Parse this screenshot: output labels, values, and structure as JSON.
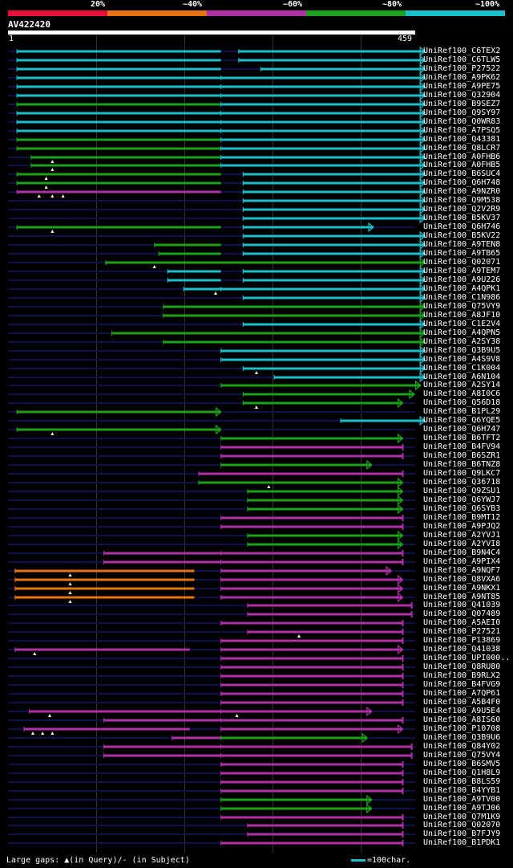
{
  "colors": {
    "red": "#e8103a",
    "orange": "#e87414",
    "purple": "#b030a8",
    "green": "#1aa21a",
    "cyan": "#1bbfcc",
    "query": "#ffffff",
    "track": "#10104a",
    "gap": "#ffffcc"
  },
  "legend": {
    "labels": [
      "20%",
      "~40%",
      "~60%",
      "~80%",
      "~100%"
    ],
    "bands": [
      "red",
      "orange",
      "purple",
      "green",
      "cyan"
    ]
  },
  "query": {
    "id": "AV422420",
    "start": "1",
    "end": "459",
    "length": 459
  },
  "hits": [
    {
      "label": "UniRef100_C6TEX2",
      "color": "cyan",
      "segs": [
        [
          10,
          240
        ],
        [
          260,
          470
        ]
      ],
      "end": "arrow"
    },
    {
      "label": "UniRef100_C6TLW5",
      "color": "cyan",
      "segs": [
        [
          10,
          240
        ],
        [
          260,
          470
        ]
      ],
      "end": "arrow"
    },
    {
      "label": "UniRef100_P27522",
      "color": "cyan",
      "segs": [
        [
          10,
          240
        ],
        [
          285,
          470
        ]
      ],
      "end": "arrow"
    },
    {
      "label": "UniRef100_A9PK62",
      "color": "cyan",
      "segs": [
        [
          10,
          240
        ],
        [
          240,
          470
        ]
      ],
      "end": "arrow"
    },
    {
      "label": "UniRef100_A9PE75",
      "color": "cyan",
      "segs": [
        [
          10,
          240
        ],
        [
          240,
          470
        ]
      ],
      "end": "arrow"
    },
    {
      "label": "UniRef100_Q32904",
      "color": "cyan",
      "segs": [
        [
          10,
          240
        ],
        [
          240,
          470
        ]
      ],
      "end": "arrow"
    },
    {
      "label": "UniRef100_B9SEZ7",
      "color": "green",
      "segs": [
        [
          10,
          240
        ]
      ],
      "segs2": [
        [
          240,
          470
        ]
      ],
      "color2": "cyan",
      "end": "arrow"
    },
    {
      "label": "UniRef100_Q9SY97",
      "color": "cyan",
      "segs": [
        [
          10,
          240
        ],
        [
          240,
          470
        ]
      ],
      "end": "arrow"
    },
    {
      "label": "UniRef100_Q0WR83",
      "color": "cyan",
      "segs": [
        [
          10,
          240
        ],
        [
          240,
          470
        ]
      ],
      "end": "arrow"
    },
    {
      "label": "UniRef100_A7PSQ5",
      "color": "cyan",
      "segs": [
        [
          10,
          240
        ],
        [
          240,
          470
        ]
      ],
      "end": "arrow"
    },
    {
      "label": "UniRef100_Q43381",
      "color": "green",
      "segs": [
        [
          10,
          240
        ]
      ],
      "segs2": [
        [
          240,
          470
        ]
      ],
      "color2": "cyan",
      "end": "arrow"
    },
    {
      "label": "UniRef100_Q8LCR7",
      "color": "green",
      "segs": [
        [
          10,
          240
        ]
      ],
      "segs2": [
        [
          240,
          470
        ]
      ],
      "color2": "cyan",
      "end": "arrow"
    },
    {
      "label": "UniRef100_A0FHB6",
      "color": "green",
      "segs": [
        [
          26,
          240
        ]
      ],
      "segs2": [
        [
          240,
          470
        ]
      ],
      "color2": "cyan",
      "end": "arrow",
      "gaps": [
        50
      ]
    },
    {
      "label": "UniRef100_A0FHB5",
      "color": "green",
      "segs": [
        [
          26,
          240
        ]
      ],
      "segs2": [
        [
          240,
          470
        ]
      ],
      "color2": "cyan",
      "end": "arrow",
      "gaps": [
        50
      ]
    },
    {
      "label": "UniRef100_B6SUC4",
      "color": "green",
      "segs": [
        [
          10,
          240
        ]
      ],
      "segs2": [
        [
          265,
          470
        ]
      ],
      "color2": "cyan",
      "end": "arrow",
      "gaps": [
        43
      ]
    },
    {
      "label": "UniRef100_Q6H748",
      "color": "green",
      "segs": [
        [
          10,
          240
        ]
      ],
      "segs2": [
        [
          265,
          470
        ]
      ],
      "color2": "cyan",
      "end": "arrow",
      "gaps": [
        43
      ]
    },
    {
      "label": "UniRef100_A9NZR0",
      "color": "purple",
      "segs": [
        [
          10,
          240
        ]
      ],
      "segs2": [
        [
          265,
          470
        ]
      ],
      "color2": "cyan",
      "end": "arrow",
      "gaps": [
        35,
        50,
        62
      ]
    },
    {
      "label": "UniRef100_Q9M538",
      "color": "cyan",
      "segs": [
        [
          265,
          470
        ]
      ],
      "end": "arrow"
    },
    {
      "label": "UniRef100_Q2V2R9",
      "color": "cyan",
      "segs": [
        [
          265,
          470
        ]
      ],
      "end": "arrow"
    },
    {
      "label": "UniRef100_B5KV37",
      "color": "cyan",
      "segs": [
        [
          265,
          470
        ]
      ],
      "end": "arrow"
    },
    {
      "label": "UniRef100_Q6H746",
      "color": "green",
      "segs": [
        [
          10,
          240
        ]
      ],
      "segs2": [
        [
          265,
          412
        ]
      ],
      "color2": "cyan",
      "end": "arrow",
      "gaps": [
        50
      ]
    },
    {
      "label": "UniRef100_B5KV22",
      "color": "cyan",
      "segs": [
        [
          265,
          470
        ]
      ],
      "end": "arrow"
    },
    {
      "label": "UniRef100_A9TEN8",
      "color": "green",
      "segs": [
        [
          165,
          240
        ]
      ],
      "segs2": [
        [
          265,
          470
        ]
      ],
      "color2": "cyan",
      "end": "arrow"
    },
    {
      "label": "UniRef100_A9TB65",
      "color": "green",
      "segs": [
        [
          170,
          240
        ]
      ],
      "segs2": [
        [
          265,
          470
        ]
      ],
      "color2": "cyan",
      "end": "arrow"
    },
    {
      "label": "UniRef100_Q02071",
      "color": "green",
      "segs": [
        [
          110,
          470
        ]
      ],
      "end": "arrow",
      "gaps": [
        165
      ]
    },
    {
      "label": "UniRef100_A9TEM7",
      "color": "cyan",
      "segs": [
        [
          180,
          240
        ],
        [
          265,
          470
        ]
      ],
      "end": "arrow"
    },
    {
      "label": "UniRef100_A9U226",
      "color": "cyan",
      "segs": [
        [
          180,
          240
        ],
        [
          265,
          470
        ]
      ],
      "end": "arrow"
    },
    {
      "label": "UniRef100_A4QPK1",
      "color": "cyan",
      "segs": [
        [
          198,
          240
        ],
        [
          240,
          470
        ]
      ],
      "end": "arrow",
      "gaps": [
        234
      ]
    },
    {
      "label": "UniRef100_C1N986",
      "color": "cyan",
      "segs": [
        [
          265,
          470
        ]
      ],
      "end": "arrow"
    },
    {
      "label": "UniRef100_Q75VY9",
      "color": "green",
      "segs": [
        [
          175,
          470
        ]
      ],
      "end": "arrow"
    },
    {
      "label": "UniRef100_A8JF10",
      "color": "green",
      "segs": [
        [
          175,
          470
        ]
      ],
      "end": "arrow"
    },
    {
      "label": "UniRef100_C1E2V4",
      "color": "cyan",
      "segs": [
        [
          265,
          470
        ]
      ],
      "end": "arrow"
    },
    {
      "label": "UniRef100_A4QPN5",
      "color": "green",
      "segs": [
        [
          117,
          470
        ]
      ],
      "end": "arrow"
    },
    {
      "label": "UniRef100_A2SY38",
      "color": "green",
      "segs": [
        [
          175,
          470
        ]
      ],
      "end": "arrow"
    },
    {
      "label": "UniRef100_Q3B9U5",
      "color": "cyan",
      "segs": [
        [
          240,
          470
        ]
      ],
      "end": "arrow"
    },
    {
      "label": "UniRef100_A4S9V8",
      "color": "cyan",
      "segs": [
        [
          240,
          470
        ]
      ],
      "end": "arrow"
    },
    {
      "label": "UniRef100_C1K004",
      "color": "cyan",
      "segs": [
        [
          265,
          470
        ]
      ],
      "end": "arrow",
      "gaps": [
        280
      ]
    },
    {
      "label": "UniRef100_A6N104",
      "color": "cyan",
      "segs": [
        [
          300,
          470
        ]
      ],
      "end": "arrow"
    },
    {
      "label": "UniRef100_A2SY14",
      "color": "green",
      "segs": [
        [
          240,
          465
        ]
      ],
      "end": "arrow"
    },
    {
      "label": "UniRef100_A8I0C6",
      "color": "green",
      "segs": [
        [
          265,
          458
        ]
      ],
      "end": "arrow"
    },
    {
      "label": "UniRef100_Q56D18",
      "color": "green",
      "segs": [
        [
          265,
          445
        ]
      ],
      "end": "arrow",
      "gaps": [
        280
      ]
    },
    {
      "label": "UniRef100_B1PL29",
      "color": "green",
      "segs": [
        [
          10,
          240
        ]
      ],
      "end": "arrow"
    },
    {
      "label": "UniRef100_Q6YQE5",
      "color": "cyan",
      "segs": [
        [
          375,
          470
        ]
      ],
      "end": "arrow"
    },
    {
      "label": "UniRef100_Q6H747",
      "color": "green",
      "segs": [
        [
          10,
          240
        ]
      ],
      "end": "arrow",
      "gaps": [
        50
      ]
    },
    {
      "label": "UniRef100_B6TFT2",
      "color": "green",
      "segs": [
        [
          240,
          445
        ]
      ],
      "end": "arrow"
    },
    {
      "label": "UniRef100_B4FV94",
      "color": "purple",
      "segs": [
        [
          240,
          445
        ]
      ],
      "end": "bar"
    },
    {
      "label": "UniRef100_B6SZR1",
      "color": "purple",
      "segs": [
        [
          240,
          445
        ]
      ],
      "end": "bar"
    },
    {
      "label": "UniRef100_B6TNZ8",
      "color": "green",
      "segs": [
        [
          240,
          410
        ]
      ],
      "end": "arrow"
    },
    {
      "label": "UniRef100_Q9LKC7",
      "color": "purple",
      "segs": [
        [
          215,
          445
        ]
      ],
      "end": "bar"
    },
    {
      "label": "UniRef100_Q36718",
      "color": "green",
      "segs": [
        [
          215,
          445
        ]
      ],
      "end": "arrow",
      "gaps": [
        294
      ]
    },
    {
      "label": "UniRef100_Q9ZSU1",
      "color": "green",
      "segs": [
        [
          270,
          445
        ]
      ],
      "end": "arrow"
    },
    {
      "label": "UniRef100_Q6YWJ7",
      "color": "green",
      "segs": [
        [
          270,
          445
        ]
      ],
      "end": "arrow"
    },
    {
      "label": "UniRef100_Q6SYB3",
      "color": "green",
      "segs": [
        [
          270,
          445
        ]
      ],
      "end": "arrow"
    },
    {
      "label": "UniRef100_B9MT12",
      "color": "purple",
      "segs": [
        [
          240,
          445
        ]
      ],
      "end": "bar"
    },
    {
      "label": "UniRef100_A9PJQ2",
      "color": "purple",
      "segs": [
        [
          240,
          445
        ]
      ],
      "end": "bar"
    },
    {
      "label": "UniRef100_A2YVJ1",
      "color": "green",
      "segs": [
        [
          270,
          445
        ]
      ],
      "end": "arrow"
    },
    {
      "label": "UniRef100_A2YVI8",
      "color": "green",
      "segs": [
        [
          270,
          445
        ]
      ],
      "end": "arrow"
    },
    {
      "label": "UniRef100_B9N4C4",
      "color": "purple",
      "segs": [
        [
          108,
          240
        ],
        [
          240,
          445
        ]
      ],
      "end": "bar"
    },
    {
      "label": "UniRef100_A9PIX4",
      "color": "purple",
      "segs": [
        [
          108,
          240
        ],
        [
          240,
          445
        ]
      ],
      "end": "bar"
    },
    {
      "label": "UniRef100_A9NQF7",
      "color": "orange",
      "segs": [
        [
          8,
          210
        ]
      ],
      "segs2": [
        [
          240,
          432
        ]
      ],
      "color2": "purple",
      "end": "arrow",
      "gaps": [
        70
      ]
    },
    {
      "label": "UniRef100_Q8VXA6",
      "color": "orange",
      "segs": [
        [
          8,
          210
        ]
      ],
      "segs2": [
        [
          240,
          445
        ]
      ],
      "color2": "purple",
      "end": "arrow",
      "gaps": [
        70
      ]
    },
    {
      "label": "UniRef100_A9NKX1",
      "color": "orange",
      "segs": [
        [
          8,
          210
        ]
      ],
      "segs2": [
        [
          240,
          445
        ]
      ],
      "color2": "purple",
      "end": "arrow",
      "gaps": [
        70
      ]
    },
    {
      "label": "UniRef100_A9NT85",
      "color": "orange",
      "segs": [
        [
          8,
          210
        ]
      ],
      "segs2": [
        [
          240,
          445
        ]
      ],
      "color2": "purple",
      "end": "arrow",
      "gaps": [
        70
      ]
    },
    {
      "label": "UniRef100_Q41039",
      "color": "purple",
      "segs": [
        [
          270,
          455
        ]
      ],
      "end": "bar"
    },
    {
      "label": "UniRef100_Q07489",
      "color": "purple",
      "segs": [
        [
          270,
          455
        ]
      ],
      "end": "bar"
    },
    {
      "label": "UniRef100_A5AEI0",
      "color": "purple",
      "segs": [
        [
          240,
          445
        ]
      ],
      "end": "bar"
    },
    {
      "label": "UniRef100_P27521",
      "color": "purple",
      "segs": [
        [
          270,
          445
        ]
      ],
      "end": "bar",
      "gaps": [
        328
      ]
    },
    {
      "label": "UniRef100_P13869",
      "color": "purple",
      "segs": [
        [
          240,
          445
        ]
      ],
      "end": "bar"
    },
    {
      "label": "UniRef100_Q41038",
      "color": "purple",
      "segs": [
        [
          8,
          205
        ]
      ],
      "segs2": [
        [
          240,
          445
        ]
      ],
      "end": "arrow",
      "gaps": [
        30
      ]
    },
    {
      "label": "UniRef100_UPI000..",
      "color": "purple",
      "segs": [
        [
          240,
          445
        ]
      ],
      "end": "bar"
    },
    {
      "label": "UniRef100_Q8RU80",
      "color": "purple",
      "segs": [
        [
          240,
          445
        ]
      ],
      "end": "bar"
    },
    {
      "label": "UniRef100_B9RLX2",
      "color": "purple",
      "segs": [
        [
          240,
          445
        ]
      ],
      "end": "bar"
    },
    {
      "label": "UniRef100_B4FVG9",
      "color": "purple",
      "segs": [
        [
          240,
          445
        ]
      ],
      "end": "bar"
    },
    {
      "label": "UniRef100_A7QP61",
      "color": "purple",
      "segs": [
        [
          240,
          445
        ]
      ],
      "end": "bar"
    },
    {
      "label": "UniRef100_A5B4F0",
      "color": "purple",
      "segs": [
        [
          240,
          445
        ]
      ],
      "end": "bar"
    },
    {
      "label": "UniRef100_A9U5E4",
      "color": "purple",
      "segs": [
        [
          24,
          240
        ],
        [
          240,
          410
        ]
      ],
      "end": "arrow",
      "gaps": [
        47,
        258
      ]
    },
    {
      "label": "UniRef100_A8IS60",
      "color": "purple",
      "segs": [
        [
          108,
          240
        ],
        [
          240,
          445
        ]
      ],
      "end": "bar"
    },
    {
      "label": "UniRef100_P10708",
      "color": "purple",
      "segs": [
        [
          18,
          205
        ]
      ],
      "segs2": [
        [
          240,
          445
        ]
      ],
      "end": "arrow",
      "gaps": [
        28,
        39,
        50
      ]
    },
    {
      "label": "UniRef100_Q3B9U6",
      "color": "purple",
      "segs": [
        [
          185,
          240
        ]
      ],
      "segs2": [
        [
          240,
          405
        ]
      ],
      "color2": "green",
      "end": "arrow"
    },
    {
      "label": "UniRef100_Q84Y02",
      "color": "purple",
      "segs": [
        [
          108,
          240
        ],
        [
          240,
          455
        ]
      ],
      "end": "bar"
    },
    {
      "label": "UniRef100_Q75VY4",
      "color": "purple",
      "segs": [
        [
          108,
          240
        ],
        [
          240,
          455
        ]
      ],
      "end": "bar"
    },
    {
      "label": "UniRef100_B6SMV5",
      "color": "purple",
      "segs": [
        [
          240,
          445
        ]
      ],
      "end": "bar"
    },
    {
      "label": "UniRef100_Q1H8L9",
      "color": "purple",
      "segs": [
        [
          240,
          445
        ]
      ],
      "end": "bar"
    },
    {
      "label": "UniRef100_B8LS59",
      "color": "purple",
      "segs": [
        [
          240,
          445
        ]
      ],
      "end": "bar"
    },
    {
      "label": "UniRef100_B4YYB1",
      "color": "purple",
      "segs": [
        [
          240,
          445
        ]
      ],
      "end": "bar"
    },
    {
      "label": "UniRef100_A9TV00",
      "color": "green",
      "segs": [
        [
          240,
          410
        ]
      ],
      "end": "arrow"
    },
    {
      "label": "UniRef100_A9TJ06",
      "color": "green",
      "segs": [
        [
          240,
          410
        ]
      ],
      "end": "arrow"
    },
    {
      "label": "UniRef100_Q7M1K9",
      "color": "purple",
      "segs": [
        [
          240,
          445
        ]
      ],
      "end": "bar"
    },
    {
      "label": "UniRef100_Q02070",
      "color": "purple",
      "segs": [
        [
          270,
          445
        ]
      ],
      "end": "bar"
    },
    {
      "label": "UniRef100_B7FJY9",
      "color": "purple",
      "segs": [
        [
          270,
          445
        ]
      ],
      "end": "bar"
    },
    {
      "label": "UniRef100_B1PDK1",
      "color": "purple",
      "segs": [
        [
          240,
          445
        ]
      ],
      "end": "bar"
    }
  ],
  "footer": {
    "gaps_text": "Large gaps: ▲(in Query)/- (in Subject)",
    "scale_text": "=100char."
  }
}
